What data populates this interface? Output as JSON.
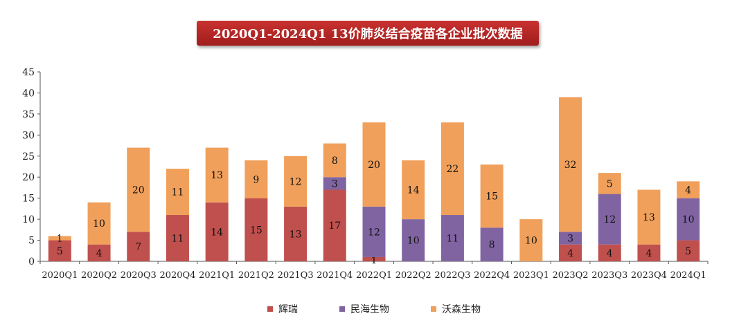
{
  "chart_data": {
    "type": "bar",
    "stacked": true,
    "title": "2020Q1-2024Q1 13价肺炎结合疫苗各企业批次数据",
    "categories": [
      "2020Q1",
      "2020Q2",
      "2020Q3",
      "2020Q4",
      "2021Q1",
      "2021Q2",
      "2021Q3",
      "2021Q4",
      "2022Q1",
      "2022Q2",
      "2022Q3",
      "2022Q4",
      "2023Q1",
      "2023Q2",
      "2023Q3",
      "2023Q4",
      "2024Q1"
    ],
    "series": [
      {
        "name": "辉瑞",
        "color": "#c0504d",
        "values": [
          5,
          4,
          7,
          11,
          14,
          15,
          13,
          17,
          1,
          0,
          0,
          0,
          0,
          4,
          4,
          4,
          5
        ],
        "labels": [
          "5",
          "4",
          "7",
          "11",
          "14",
          "15",
          "13",
          "17",
          "1",
          "",
          "",
          "",
          "",
          "4",
          "4",
          "4",
          "5"
        ]
      },
      {
        "name": "民海生物",
        "color": "#8064a2",
        "values": [
          0,
          0,
          0,
          0,
          0,
          0,
          0,
          3,
          12,
          10,
          11,
          8,
          0,
          3,
          12,
          0,
          10
        ],
        "labels": [
          "",
          "",
          "",
          "",
          "",
          "",
          "",
          "3",
          "12",
          "10",
          "11",
          "8",
          "",
          "3",
          "12",
          "",
          "10"
        ]
      },
      {
        "name": "沃森生物",
        "color": "#f0a05a",
        "values": [
          1,
          10,
          20,
          11,
          13,
          9,
          12,
          8,
          20,
          14,
          22,
          15,
          10,
          32,
          5,
          13,
          4
        ],
        "labels": [
          "1",
          "10",
          "20",
          "11",
          "13",
          "9",
          "12",
          "8",
          "20",
          "14",
          "22",
          "15",
          "10",
          "32",
          "5",
          "13",
          "4"
        ]
      }
    ],
    "ylim": [
      0,
      45
    ],
    "yticks": [
      "0",
      "5",
      "10",
      "15",
      "20",
      "25",
      "30",
      "35",
      "40",
      "45"
    ],
    "legend_position": "bottom"
  }
}
